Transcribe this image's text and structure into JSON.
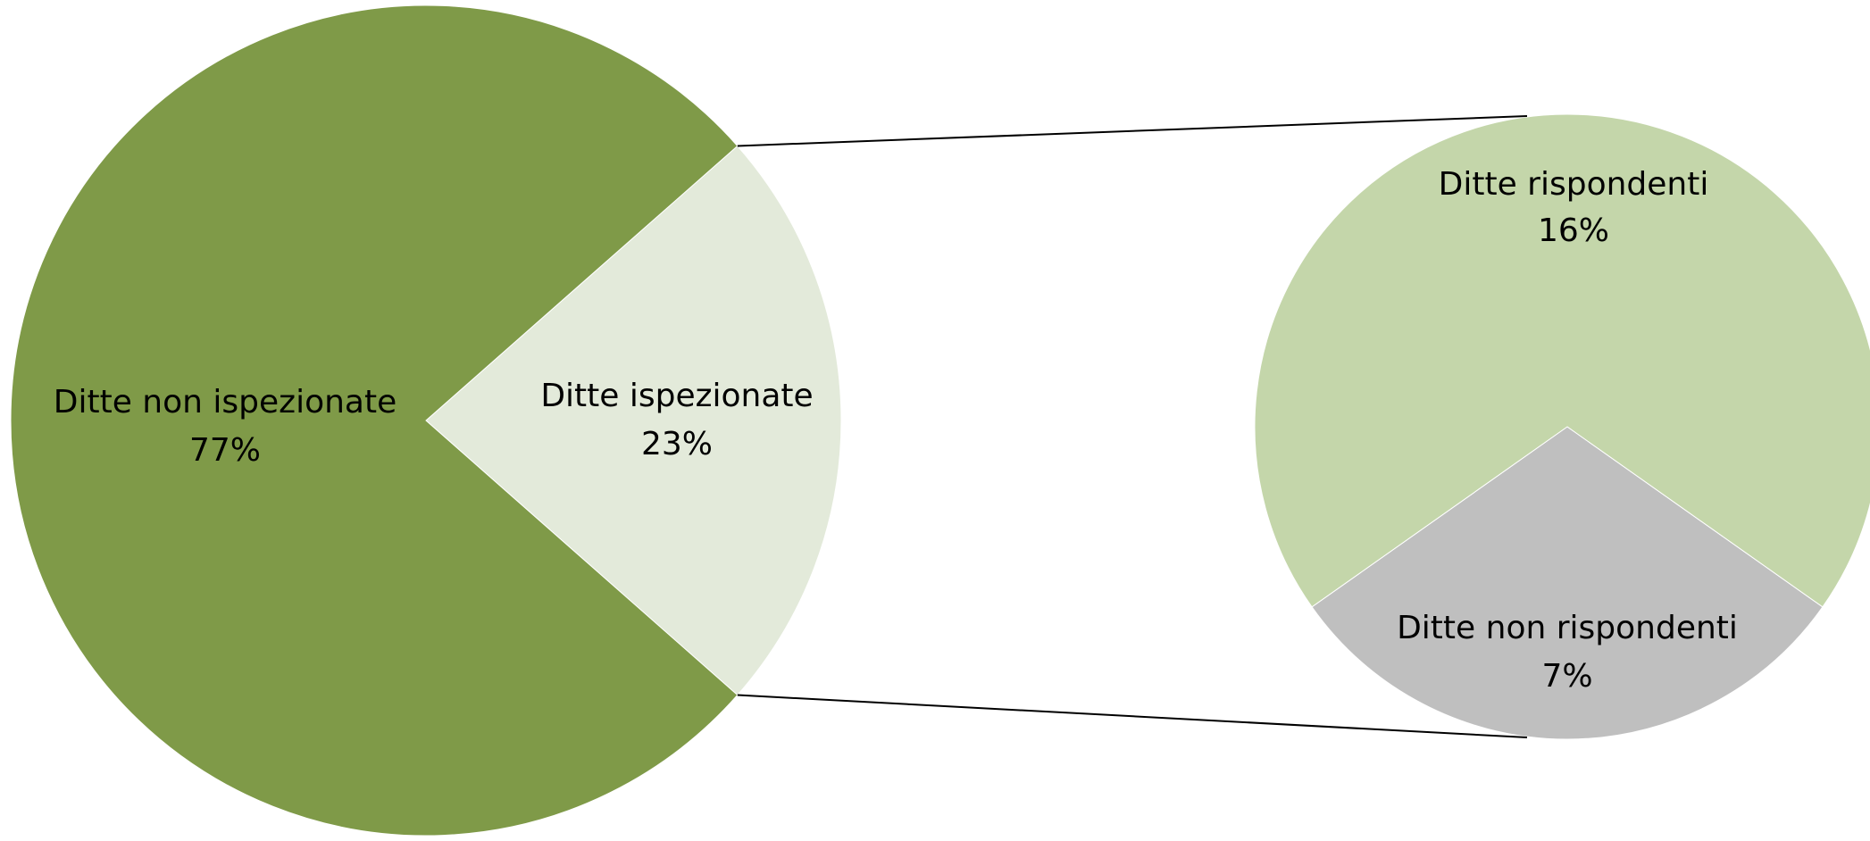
{
  "chart_data": [
    {
      "type": "pie",
      "title": "",
      "slices": [
        {
          "label": "Ditte non ispezionate",
          "value": 77,
          "value_label": "77%",
          "color": "#7f9a48"
        },
        {
          "label": "Ditte ispezionate",
          "value": 23,
          "value_label": "23%",
          "color": "#e3eada"
        }
      ]
    },
    {
      "type": "pie",
      "title": "",
      "breakdown_of": "Ditte ispezionate",
      "slices": [
        {
          "label": "Ditte rispondenti",
          "value": 16,
          "value_label": "16%",
          "color": "#c4d6aa"
        },
        {
          "label": "Ditte non rispondenti",
          "value": 7,
          "value_label": "7%",
          "color": "#bfbfbf"
        }
      ]
    }
  ],
  "connector_color": "#000000"
}
